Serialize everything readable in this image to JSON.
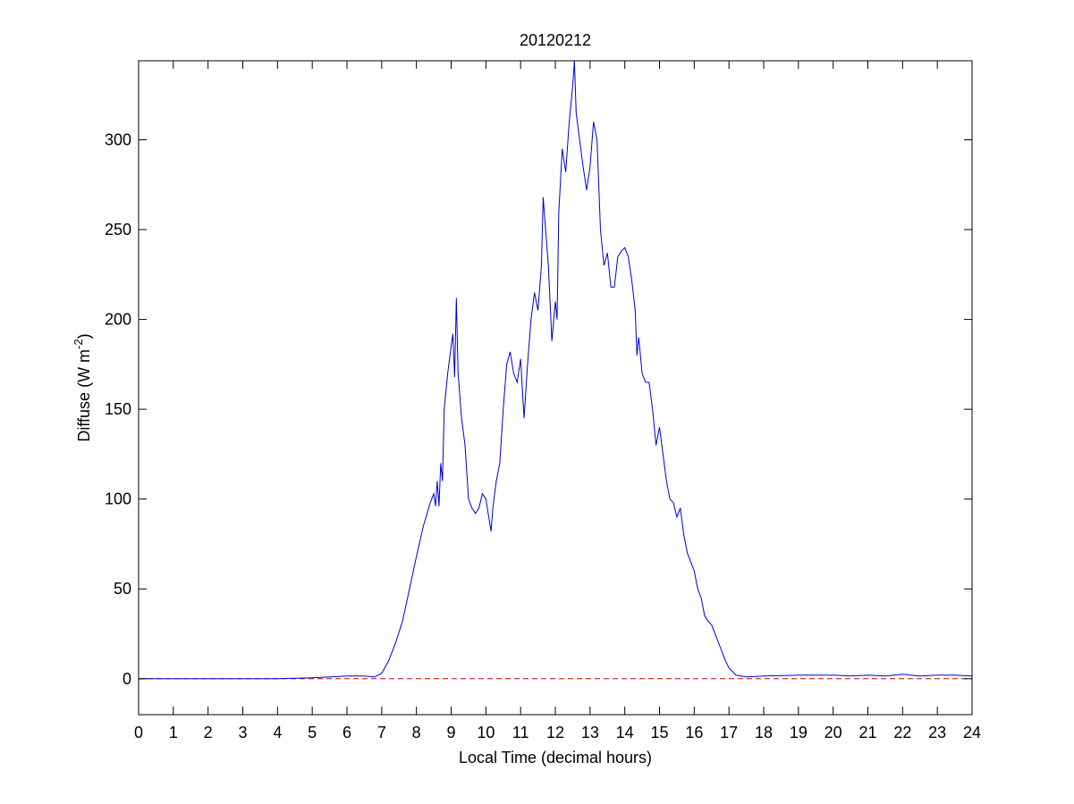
{
  "chart_data": {
    "type": "line",
    "title": "20120212",
    "xlabel": "Local Time (decimal hours)",
    "ylabel": [
      "Diffuse (W m",
      "-2",
      ")"
    ],
    "x": [
      0,
      1,
      2,
      3,
      4,
      5,
      5.5,
      6,
      6.5,
      6.8,
      7.0,
      7.2,
      7.4,
      7.6,
      7.8,
      8.0,
      8.2,
      8.4,
      8.5,
      8.55,
      8.6,
      8.65,
      8.7,
      8.75,
      8.8,
      8.9,
      9.0,
      9.05,
      9.1,
      9.15,
      9.2,
      9.3,
      9.4,
      9.5,
      9.6,
      9.7,
      9.8,
      9.9,
      10.0,
      10.1,
      10.15,
      10.2,
      10.3,
      10.4,
      10.5,
      10.6,
      10.7,
      10.8,
      10.9,
      11.0,
      11.1,
      11.15,
      11.2,
      11.3,
      11.4,
      11.5,
      11.6,
      11.65,
      11.7,
      11.8,
      11.9,
      12.0,
      12.05,
      12.1,
      12.2,
      12.3,
      12.4,
      12.5,
      12.55,
      12.6,
      12.7,
      12.8,
      12.9,
      13.0,
      13.1,
      13.2,
      13.3,
      13.4,
      13.5,
      13.6,
      13.7,
      13.8,
      13.9,
      14.0,
      14.1,
      14.2,
      14.3,
      14.35,
      14.4,
      14.5,
      14.6,
      14.7,
      14.8,
      14.9,
      15.0,
      15.1,
      15.2,
      15.3,
      15.4,
      15.5,
      15.6,
      15.7,
      15.8,
      15.9,
      16.0,
      16.1,
      16.2,
      16.3,
      16.4,
      16.5,
      16.6,
      16.7,
      16.8,
      16.9,
      17.0,
      17.2,
      17.5,
      18,
      19,
      20,
      20.5,
      21,
      21.5,
      22,
      22.5,
      23,
      23.5,
      24
    ],
    "series": [
      {
        "color": "#0000cc",
        "values": [
          0,
          0,
          0,
          0,
          0,
          0.5,
          1,
          1.5,
          1.5,
          1,
          3,
          10,
          20,
          32,
          50,
          68,
          85,
          98,
          103,
          96,
          110,
          96,
          120,
          110,
          150,
          170,
          185,
          192,
          168,
          212,
          170,
          145,
          130,
          100,
          95,
          92,
          95,
          103,
          100,
          88,
          82,
          95,
          110,
          120,
          150,
          175,
          182,
          170,
          165,
          178,
          145,
          160,
          175,
          200,
          215,
          205,
          230,
          268,
          255,
          230,
          188,
          210,
          200,
          260,
          295,
          282,
          310,
          330,
          344,
          315,
          300,
          285,
          272,
          285,
          310,
          300,
          250,
          230,
          237,
          218,
          218,
          235,
          238,
          240,
          235,
          222,
          205,
          180,
          190,
          170,
          165,
          165,
          150,
          130,
          140,
          125,
          110,
          100,
          98,
          90,
          95,
          80,
          70,
          65,
          60,
          50,
          45,
          35,
          32,
          30,
          25,
          20,
          15,
          10,
          6,
          2,
          1,
          1.5,
          2,
          2,
          1.5,
          2,
          1.5,
          2.5,
          1.5,
          2,
          2,
          1.5
        ]
      }
    ],
    "hline": 0,
    "hline_color": "#cc0000",
    "xlim": [
      0,
      24
    ],
    "xticks": [
      0,
      1,
      2,
      3,
      4,
      5,
      6,
      7,
      8,
      9,
      10,
      11,
      12,
      13,
      14,
      15,
      16,
      17,
      18,
      19,
      20,
      21,
      22,
      23,
      24
    ],
    "ylim": [
      -20,
      344
    ],
    "yticks": [
      0,
      50,
      100,
      150,
      200,
      250,
      300
    ]
  }
}
